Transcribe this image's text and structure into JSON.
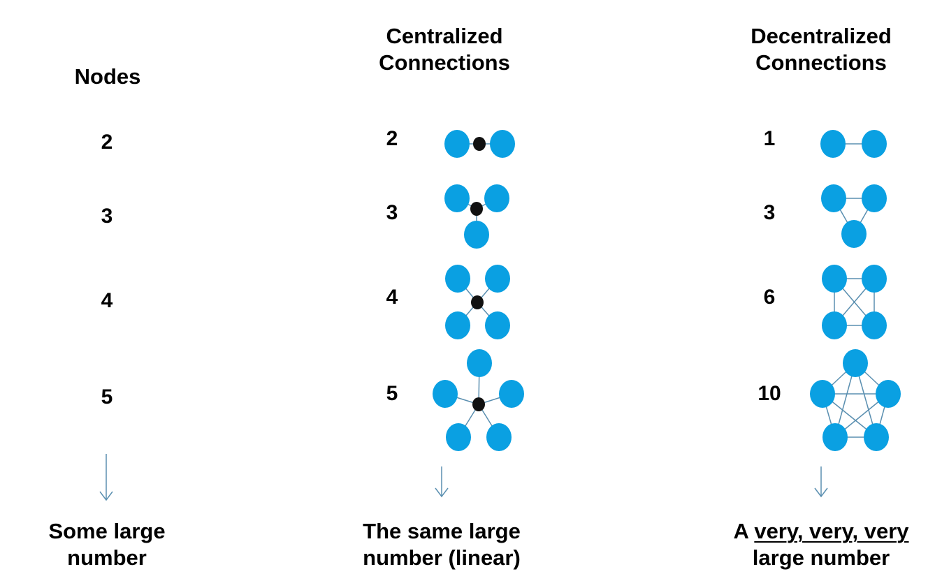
{
  "columns": {
    "nodes": {
      "header": "Nodes",
      "values": [
        "2",
        "3",
        "4",
        "5"
      ],
      "footer_line1": "Some large",
      "footer_line2": "number"
    },
    "centralized": {
      "header_line1": "Centralized",
      "header_line2": "Connections",
      "values": [
        "2",
        "3",
        "4",
        "5"
      ],
      "footer_line1": "The same large",
      "footer_line2": "number (linear)"
    },
    "decentralized": {
      "header_line1": "Decentralized",
      "header_line2": "Connections",
      "values": [
        "1",
        "3",
        "6",
        "10"
      ],
      "footer_prefix": "A",
      "footer_emphasis": "very, very, very",
      "footer_line2": "large number"
    }
  },
  "colors": {
    "node": "#0aa0e2",
    "hub": "#111111",
    "edge": "#5a8fb0",
    "arrow": "#5a8fb0"
  }
}
